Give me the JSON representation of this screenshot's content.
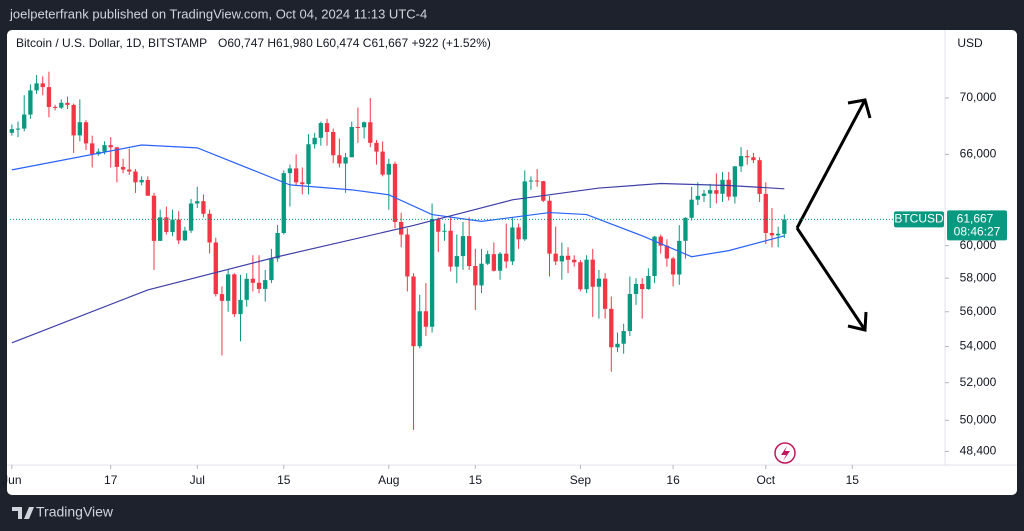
{
  "header": {
    "published": "joelpeterfrank published on TradingView.com, Oct 04, 2024 11:13 UTC-4"
  },
  "footer": {
    "brand": "TradingView"
  },
  "chart_data": {
    "type": "candlestick",
    "symbol": "Bitcoin / U.S. Dollar, 1D, BITSTAMP",
    "ohlc_text": "O60,747 H61,980 L60,474 C61,667 +922 (+1.52%)",
    "currency": "USD",
    "ticker": "BTCUSD",
    "last_price": 61667,
    "last_price_label": "61,667",
    "countdown": "08:46:27",
    "up_color": "#089981",
    "down_color": "#f23645",
    "log_scale": true,
    "grid": false,
    "xlim": [
      -0.3,
      151
    ],
    "xticks": [
      {
        "value": 0,
        "label": "Jun"
      },
      {
        "value": 16,
        "label": "17"
      },
      {
        "value": 30,
        "label": "Jul"
      },
      {
        "value": 44,
        "label": "15"
      },
      {
        "value": 61,
        "label": "Aug"
      },
      {
        "value": 75,
        "label": "15"
      },
      {
        "value": 92,
        "label": "Sep"
      },
      {
        "value": 107,
        "label": "16"
      },
      {
        "value": 122,
        "label": "Oct"
      },
      {
        "value": 136,
        "label": "15"
      }
    ],
    "ylim": [
      47720,
      75150
    ],
    "yticks": [
      {
        "value": 70000,
        "label": "70,000"
      },
      {
        "value": 66000,
        "label": "66,000"
      },
      {
        "value": 60000,
        "label": "60,000"
      },
      {
        "value": 58000,
        "label": "58,000"
      },
      {
        "value": 56000,
        "label": "56,000"
      },
      {
        "value": 54000,
        "label": "54,000"
      },
      {
        "value": 52000,
        "label": "52,000"
      },
      {
        "value": 50000,
        "label": "50,000"
      },
      {
        "value": 48400,
        "label": "48,400"
      }
    ],
    "x": [
      0,
      1,
      2,
      3,
      4,
      5,
      6,
      7,
      8,
      9,
      10,
      11,
      12,
      13,
      14,
      15,
      16,
      17,
      18,
      19,
      20,
      21,
      22,
      23,
      24,
      25,
      26,
      27,
      28,
      29,
      30,
      31,
      32,
      33,
      34,
      35,
      36,
      37,
      38,
      39,
      40,
      41,
      42,
      43,
      44,
      45,
      46,
      47,
      48,
      49,
      50,
      51,
      52,
      53,
      54,
      55,
      56,
      57,
      58,
      59,
      60,
      61,
      62,
      63,
      64,
      65,
      66,
      67,
      68,
      69,
      70,
      71,
      72,
      73,
      74,
      75,
      76,
      77,
      78,
      79,
      80,
      81,
      82,
      83,
      84,
      85,
      86,
      87,
      88,
      89,
      90,
      91,
      92,
      93,
      94,
      95,
      96,
      97,
      98,
      99,
      100,
      101,
      102,
      103,
      104,
      105,
      106,
      107,
      108,
      109,
      110,
      111,
      112,
      113,
      114,
      115,
      116,
      117,
      118,
      119,
      120,
      121,
      122,
      123,
      124,
      125
    ],
    "ohlc": [
      [
        67500,
        68100,
        67300,
        67760
      ],
      [
        67760,
        68300,
        67200,
        67800
      ],
      [
        67800,
        70200,
        67600,
        68800
      ],
      [
        68800,
        71000,
        68500,
        70560
      ],
      [
        70560,
        71700,
        70300,
        71080
      ],
      [
        71080,
        71600,
        70200,
        70800
      ],
      [
        70800,
        71950,
        68600,
        69350
      ],
      [
        69350,
        69500,
        69100,
        69300
      ],
      [
        69300,
        69900,
        69200,
        69650
      ],
      [
        69650,
        70100,
        69200,
        69500
      ],
      [
        69500,
        69600,
        66100,
        67320
      ],
      [
        67320,
        69900,
        66900,
        68250
      ],
      [
        68250,
        68400,
        66300,
        66760
      ],
      [
        66760,
        67300,
        65100,
        66010
      ],
      [
        66010,
        66400,
        65900,
        66190
      ],
      [
        66190,
        66900,
        66000,
        66640
      ],
      [
        66640,
        67200,
        65100,
        66490
      ],
      [
        66490,
        66500,
        64100,
        65140
      ],
      [
        65140,
        65700,
        64700,
        64960
      ],
      [
        64960,
        66400,
        64600,
        64830
      ],
      [
        64830,
        65000,
        63400,
        64100
      ],
      [
        64100,
        64500,
        63900,
        64260
      ],
      [
        64260,
        64500,
        63200,
        63210
      ],
      [
        63210,
        63400,
        58500,
        60300
      ],
      [
        60300,
        62300,
        60300,
        61800
      ],
      [
        61800,
        62500,
        60700,
        60860
      ],
      [
        60860,
        62300,
        60600,
        61660
      ],
      [
        61660,
        62200,
        60100,
        60330
      ],
      [
        60330,
        61200,
        60300,
        60950
      ],
      [
        60950,
        63000,
        60800,
        62700
      ],
      [
        62700,
        63800,
        62400,
        62850
      ],
      [
        62850,
        63300,
        61800,
        62030
      ],
      [
        62030,
        62300,
        59500,
        60200
      ],
      [
        60200,
        60500,
        56900,
        57040
      ],
      [
        57040,
        57500,
        53500,
        56640
      ],
      [
        56640,
        58500,
        56000,
        58230
      ],
      [
        58230,
        58300,
        55700,
        55860
      ],
      [
        55860,
        58200,
        54300,
        56700
      ],
      [
        56700,
        58300,
        56300,
        57960
      ],
      [
        57960,
        59400,
        57200,
        57720
      ],
      [
        57720,
        59400,
        57100,
        57350
      ],
      [
        57350,
        58500,
        56600,
        57880
      ],
      [
        57880,
        59800,
        57700,
        59200
      ],
      [
        59200,
        61300,
        59000,
        60800
      ],
      [
        60800,
        64900,
        60700,
        64720
      ],
      [
        64720,
        65300,
        62500,
        65040
      ],
      [
        65040,
        66000,
        63900,
        64100
      ],
      [
        64100,
        65100,
        63300,
        63980
      ],
      [
        63980,
        67400,
        63300,
        66700
      ],
      [
        66700,
        67500,
        66400,
        67150
      ],
      [
        67150,
        68300,
        66600,
        68190
      ],
      [
        68190,
        68500,
        66600,
        67560
      ],
      [
        67560,
        67800,
        65400,
        65940
      ],
      [
        65940,
        67100,
        65100,
        65370
      ],
      [
        65370,
        66100,
        63400,
        65800
      ],
      [
        65800,
        68300,
        65800,
        67910
      ],
      [
        67910,
        69300,
        66800,
        67890
      ],
      [
        67890,
        68300,
        67100,
        68250
      ],
      [
        68250,
        70000,
        66500,
        66800
      ],
      [
        66800,
        67000,
        65300,
        66190
      ],
      [
        66190,
        66900,
        64500,
        64620
      ],
      [
        64620,
        65700,
        62300,
        65350
      ],
      [
        65350,
        65500,
        61100,
        61500
      ],
      [
        61500,
        62100,
        59900,
        60700
      ],
      [
        60700,
        61100,
        57200,
        58100
      ],
      [
        58100,
        58300,
        49500,
        54020
      ],
      [
        54020,
        57000,
        53900,
        56030
      ],
      [
        56030,
        57700,
        54600,
        55130
      ],
      [
        55130,
        62700,
        54800,
        61700
      ],
      [
        61700,
        61800,
        59600,
        60880
      ],
      [
        60880,
        61400,
        60300,
        60940
      ],
      [
        60940,
        61800,
        58400,
        58700
      ],
      [
        58700,
        60700,
        57700,
        59350
      ],
      [
        59350,
        61500,
        58500,
        60600
      ],
      [
        60600,
        61800,
        58500,
        58740
      ],
      [
        58740,
        59800,
        56100,
        57560
      ],
      [
        57560,
        59800,
        57100,
        58880
      ],
      [
        58880,
        59700,
        58800,
        59470
      ],
      [
        59470,
        60200,
        58400,
        58450
      ],
      [
        58450,
        59600,
        57900,
        59500
      ],
      [
        59500,
        61400,
        58600,
        59020
      ],
      [
        59020,
        61800,
        58800,
        61150
      ],
      [
        61150,
        61400,
        59800,
        60400
      ],
      [
        60400,
        64900,
        60300,
        64160
      ],
      [
        64160,
        64500,
        63600,
        64220
      ],
      [
        64220,
        65000,
        63800,
        64180
      ],
      [
        64180,
        64200,
        62800,
        62880
      ],
      [
        62880,
        63200,
        58100,
        59500
      ],
      [
        59500,
        61200,
        58800,
        59020
      ],
      [
        59020,
        60200,
        57900,
        59370
      ],
      [
        59370,
        59900,
        58300,
        59120
      ],
      [
        59120,
        59400,
        58700,
        58970
      ],
      [
        58970,
        59100,
        57200,
        57330
      ],
      [
        57330,
        59400,
        57100,
        59130
      ],
      [
        59130,
        59800,
        55700,
        57480
      ],
      [
        57480,
        58500,
        55600,
        57970
      ],
      [
        57970,
        58300,
        55600,
        56170
      ],
      [
        56170,
        56900,
        52600,
        53960
      ],
      [
        53960,
        54800,
        53700,
        54160
      ],
      [
        54160,
        55300,
        53600,
        54880
      ],
      [
        54880,
        58100,
        54600,
        57050
      ],
      [
        57050,
        58000,
        56400,
        57650
      ],
      [
        57650,
        58000,
        55600,
        57340
      ],
      [
        57340,
        58600,
        57300,
        58130
      ],
      [
        58130,
        60600,
        57700,
        60570
      ],
      [
        60570,
        60700,
        59500,
        60000
      ],
      [
        60000,
        60400,
        58700,
        59200
      ],
      [
        59200,
        59300,
        57500,
        58220
      ],
      [
        58220,
        61300,
        57600,
        60300
      ],
      [
        60300,
        61800,
        59200,
        61770
      ],
      [
        61770,
        63800,
        61600,
        62950
      ],
      [
        62950,
        64100,
        62600,
        63200
      ],
      [
        63200,
        63600,
        62800,
        63350
      ],
      [
        63350,
        64000,
        62400,
        63580
      ],
      [
        63580,
        64700,
        62700,
        63340
      ],
      [
        63340,
        64800,
        62800,
        64270
      ],
      [
        64270,
        64800,
        62900,
        63150
      ],
      [
        63150,
        65200,
        62700,
        65180
      ],
      [
        65180,
        66500,
        64800,
        65880
      ],
      [
        65880,
        66300,
        65300,
        65800
      ],
      [
        65800,
        66100,
        65400,
        65600
      ],
      [
        65600,
        65800,
        62800,
        63330
      ],
      [
        63330,
        64100,
        60100,
        60800
      ],
      [
        60800,
        62400,
        59900,
        60650
      ],
      [
        60650,
        61200,
        59900,
        60750
      ],
      [
        60747,
        61980,
        60474,
        61667
      ]
    ],
    "lines": [
      {
        "color": "#2962ff",
        "x": [
          0,
          21,
          30,
          45,
          55,
          61,
          68,
          76,
          87,
          93,
          102,
          110,
          116,
          125
        ],
        "values": [
          64940,
          66650,
          66450,
          63930,
          63600,
          63270,
          61980,
          61540,
          62110,
          61980,
          60620,
          59310,
          59690,
          60620
        ]
      },
      {
        "color": "#3f3fa8",
        "x": [
          0,
          22,
          43,
          65,
          81,
          95,
          105,
          116,
          125
        ],
        "values": [
          54210,
          57290,
          59310,
          61280,
          62940,
          63720,
          64020,
          63890,
          63670
        ]
      }
    ]
  }
}
